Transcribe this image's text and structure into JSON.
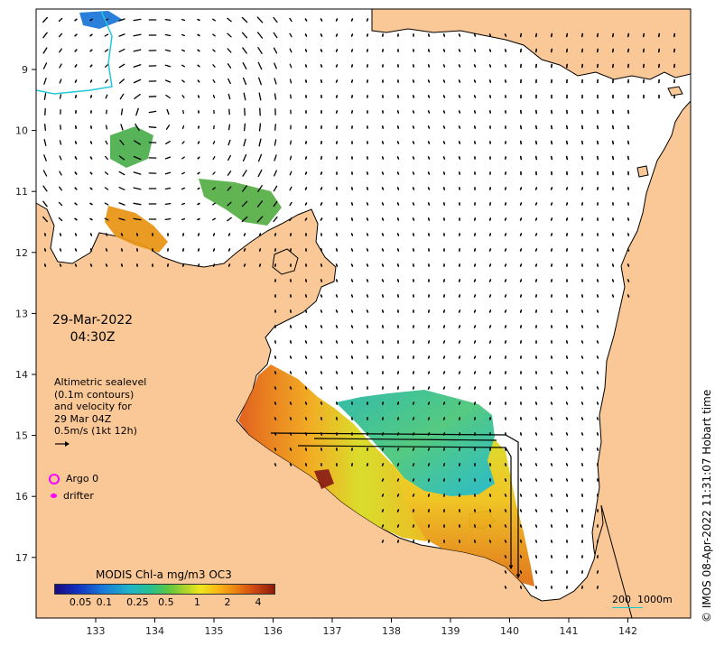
{
  "map": {
    "lon_ticks": [
      "133",
      "134",
      "135",
      "136",
      "137",
      "138",
      "139",
      "140",
      "141",
      "142"
    ],
    "lat_ticks": [
      "9",
      "10",
      "11",
      "12",
      "13",
      "14",
      "15",
      "16",
      "17"
    ],
    "land_color": "#fac896",
    "ocean_color": "#ffffff"
  },
  "date_block": {
    "date": "29-Mar-2022",
    "time": "04:30Z"
  },
  "altimetry": {
    "line1": "Altimetric sealevel",
    "line2": "(0.1m contours)",
    "line3": "and velocity for",
    "line4": "29 Mar 04Z",
    "line5": "0.5m/s (1kt 12h)"
  },
  "legend": {
    "argo": "Argo 0",
    "drifter": "drifter",
    "marker_color": "#ff00ff"
  },
  "colorbar": {
    "title": "MODIS Chl-a mg/m3 OC3",
    "ticks": [
      "0.05",
      "0.1",
      "0.25",
      "0.5",
      "1",
      "2",
      "4"
    ],
    "tick_fractions": [
      0.12,
      0.228,
      0.38,
      0.51,
      0.652,
      0.79,
      0.93
    ]
  },
  "scale_bar": {
    "left_label": "200",
    "right_label": "1000m"
  },
  "credit": "© IMOS 08-Apr-2022 11:31:07 Hobart time"
}
